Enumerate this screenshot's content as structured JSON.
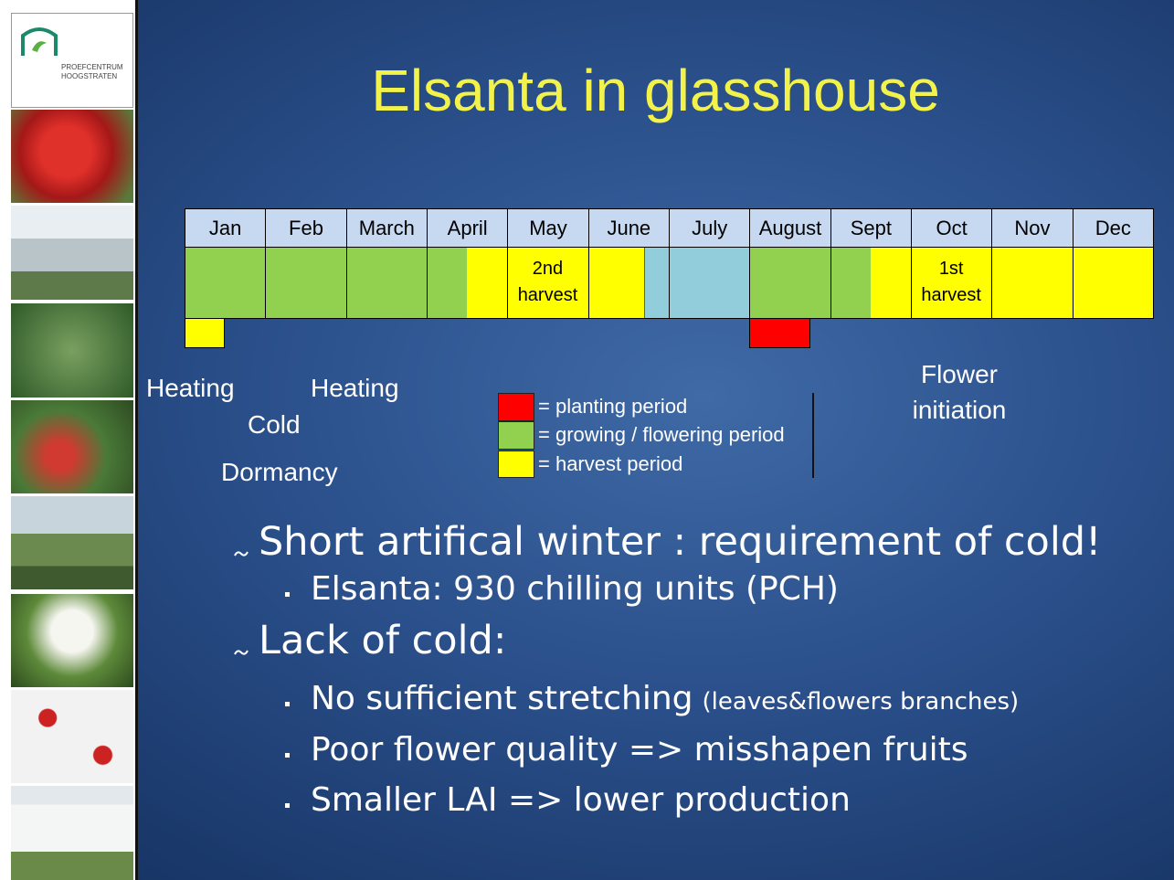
{
  "logo": {
    "lines": [
      "PROEFCENTRUM",
      "HOOGSTRATEN"
    ]
  },
  "title": "Elsanta in glasshouse",
  "calendar": {
    "months": [
      "Jan",
      "Feb",
      "March",
      "April",
      "May",
      "June",
      "July",
      "August",
      "Sept",
      "Oct",
      "Nov",
      "Dec"
    ],
    "cell_labels": {
      "may": [
        "2nd",
        "harvest"
      ],
      "oct": [
        "1st",
        "harvest"
      ]
    }
  },
  "annotations": {
    "heating_1": "Heating",
    "heating_2": "Heating",
    "cold": "Cold",
    "dormancy": "Dormancy",
    "flower_initiation": [
      "Flower",
      "initiation"
    ]
  },
  "legend": [
    {
      "color": "#ff0000",
      "label": "= planting period"
    },
    {
      "color": "#92d050",
      "label": "= growing / flowering period"
    },
    {
      "color": "#ffff00",
      "label": "= harvest period"
    }
  ],
  "bullets": [
    {
      "level": 1,
      "text": "Short artifical winter : requirement of cold!"
    },
    {
      "level": 2,
      "text": "Elsanta: 930 chilling units (PCH)"
    },
    {
      "level": 1,
      "text": "Lack of cold:"
    },
    {
      "level": 2,
      "text": "No sufficient stretching",
      "note": "(leaves&flowers branches)"
    },
    {
      "level": 2,
      "text": "Poor flower quality => misshapen fruits"
    },
    {
      "level": 2,
      "text": "Smaller LAI => lower production"
    }
  ]
}
